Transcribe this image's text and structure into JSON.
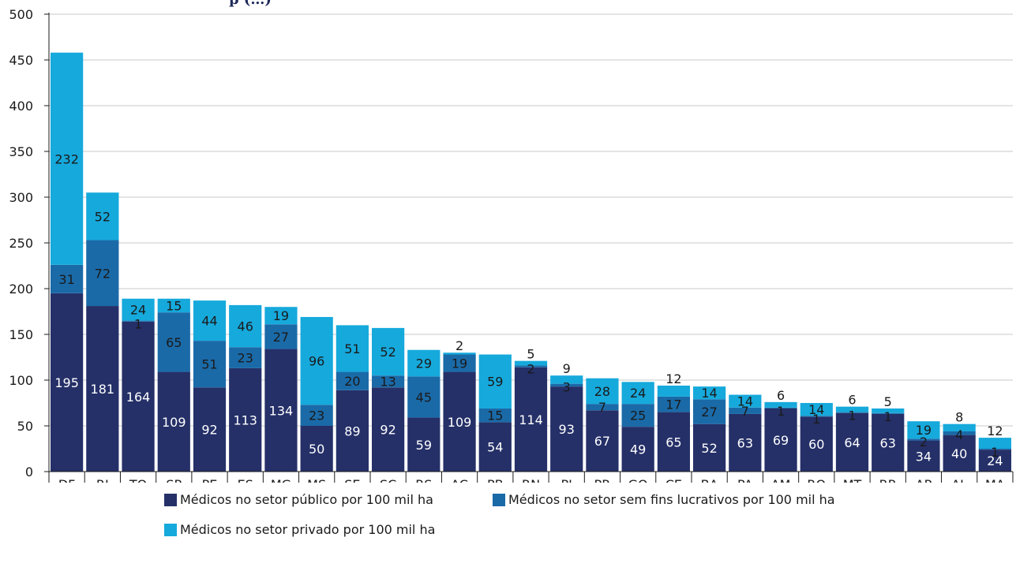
{
  "chart_data": {
    "type": "bar",
    "stacked": true,
    "title": "",
    "visible_title_fragment": "p (…)",
    "xlabel": "",
    "ylabel": "",
    "ylim": [
      0,
      500
    ],
    "yticks": [
      0,
      50,
      100,
      150,
      200,
      250,
      300,
      350,
      400,
      450,
      500
    ],
    "grid": true,
    "legend_position": "bottom",
    "categories": [
      "DF",
      "RJ",
      "TO",
      "SP",
      "PE",
      "ES",
      "MG",
      "MS",
      "SE",
      "SC",
      "RS",
      "AC",
      "PB",
      "RN",
      "PI",
      "PR",
      "GO",
      "CE",
      "BA",
      "PA",
      "AM",
      "RO",
      "MT",
      "RR",
      "AP",
      "AL",
      "MA"
    ],
    "series": [
      {
        "name": "Médicos no setor público por 100 mil ha",
        "color": "#253068",
        "label_color": "#ffffff",
        "values": [
          195,
          181,
          164,
          109,
          92,
          113,
          134,
          50,
          89,
          92,
          59,
          109,
          54,
          114,
          93,
          67,
          49,
          65,
          52,
          63,
          69,
          60,
          64,
          63,
          34,
          40,
          24
        ]
      },
      {
        "name": "Médicos no setor sem fins lucrativos por 100 mil ha",
        "color": "#1a6aa8",
        "label_color": "#1a1a1a",
        "values": [
          31,
          72,
          1,
          65,
          51,
          23,
          27,
          23,
          20,
          13,
          45,
          19,
          15,
          2,
          3,
          7,
          25,
          17,
          27,
          7,
          1,
          1,
          1,
          1,
          2,
          4,
          1
        ]
      },
      {
        "name": "Médicos no setor privado por 100 mil ha",
        "color": "#16a9dc",
        "label_color": "#1a1a1a",
        "values": [
          232,
          52,
          24,
          15,
          44,
          46,
          19,
          96,
          51,
          52,
          29,
          2,
          59,
          5,
          9,
          28,
          24,
          12,
          14,
          14,
          6,
          14,
          6,
          5,
          19,
          8,
          12
        ]
      }
    ]
  }
}
